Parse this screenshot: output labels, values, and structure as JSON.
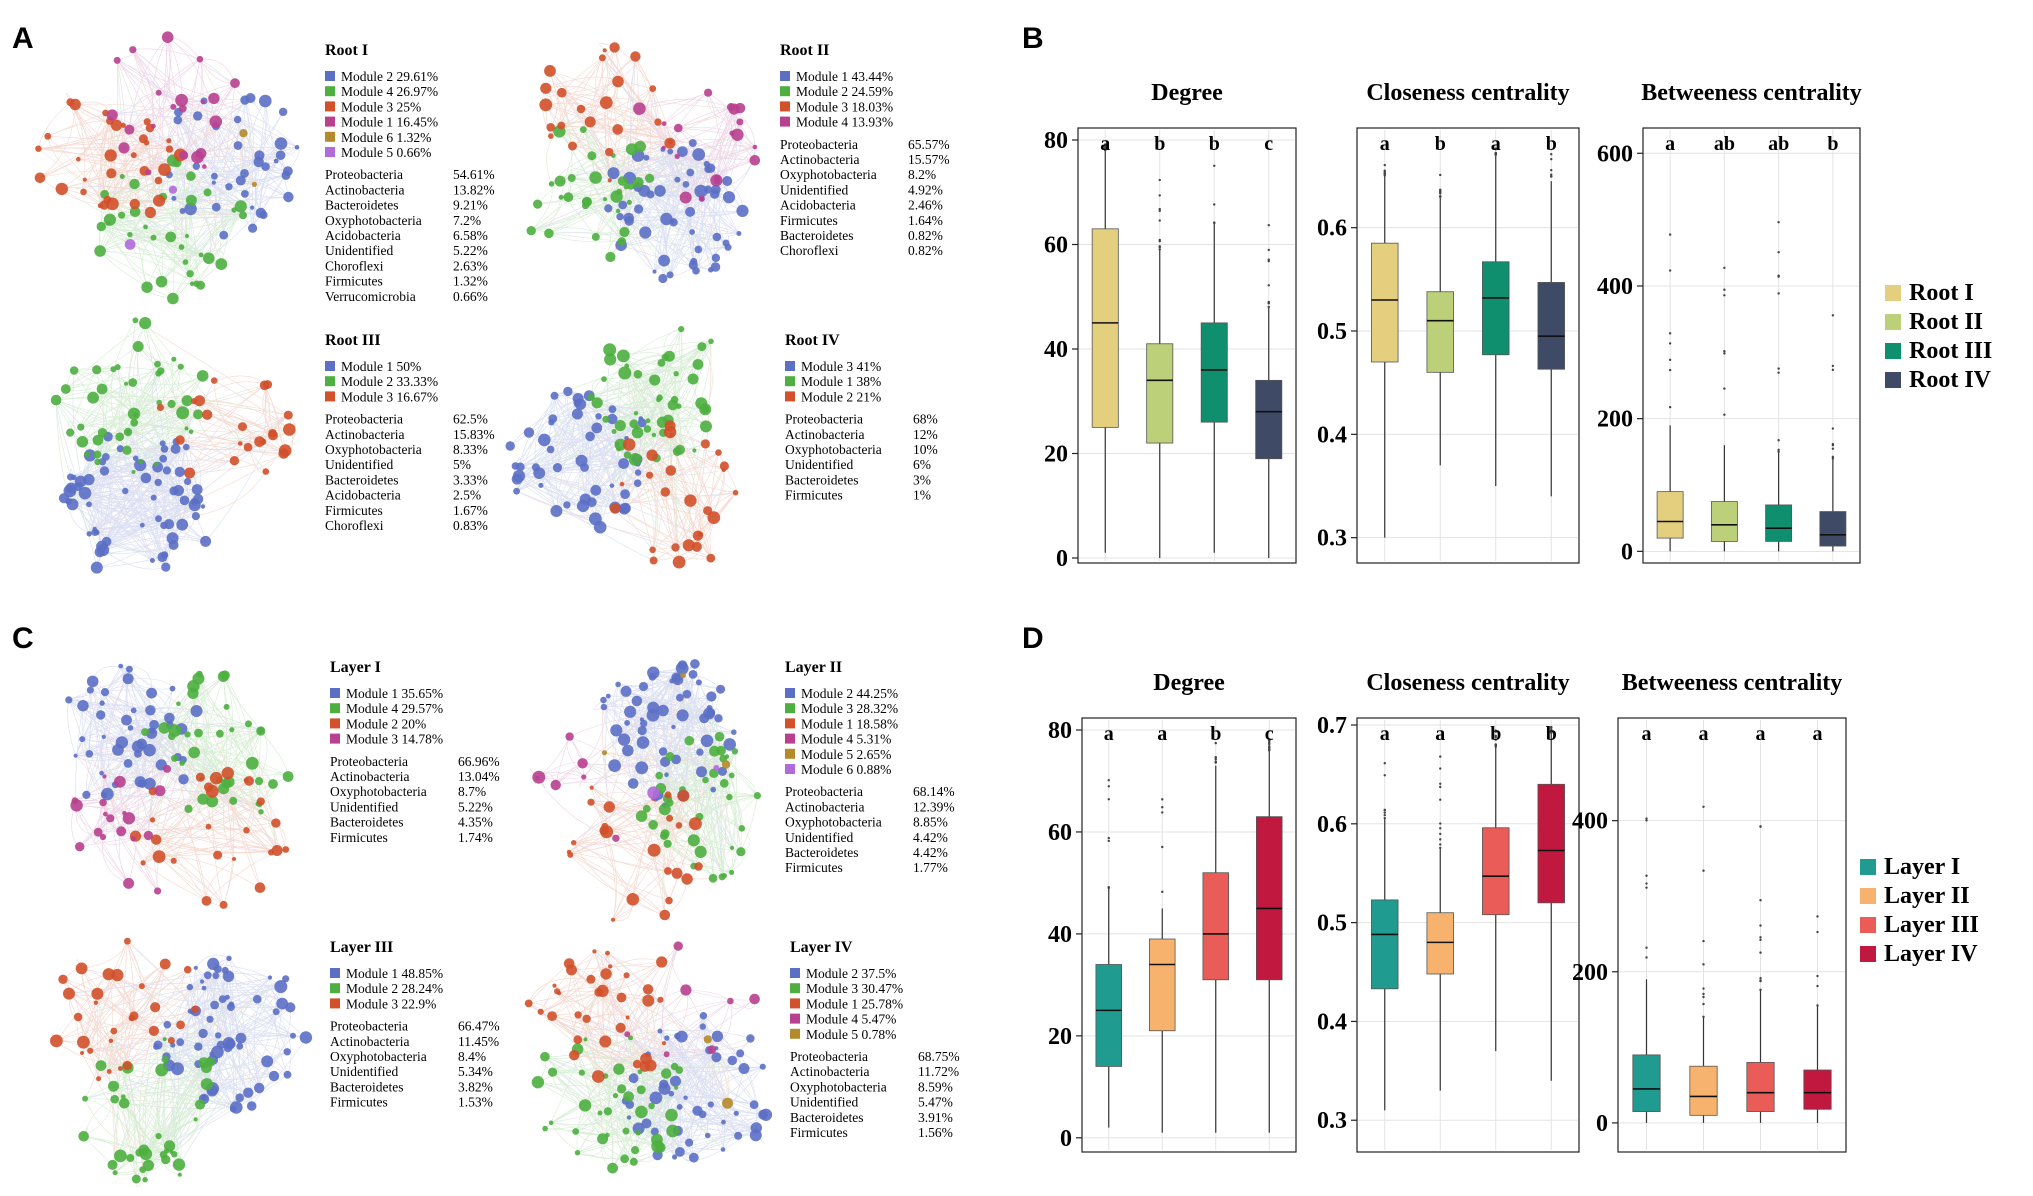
{
  "panels": {
    "A": {
      "letter": "A",
      "networks": [
        {
          "title": "Root I",
          "modules": [
            {
              "label": "Module 2",
              "value": "29.61%",
              "color": "#5b6fc5"
            },
            {
              "label": "Module 4",
              "value": "26.97%",
              "color": "#4caf3f"
            },
            {
              "label": "Module 3",
              "value": "25%",
              "color": "#d2502a"
            },
            {
              "label": "Module 1",
              "value": "16.45%",
              "color": "#b8408f"
            },
            {
              "label": "Module 6",
              "value": "1.32%",
              "color": "#b58a2a"
            },
            {
              "label": "Module 5",
              "value": "0.66%",
              "color": "#b06ad9"
            }
          ],
          "phyla": [
            {
              "name": "Proteobacteria",
              "value": "54.61%"
            },
            {
              "name": "Actinobacteria",
              "value": "13.82%"
            },
            {
              "name": "Bacteroidetes",
              "value": "9.21%"
            },
            {
              "name": "Oxyphotobacteria",
              "value": "7.2%"
            },
            {
              "name": "Acidobacteria",
              "value": "6.58%"
            },
            {
              "name": "Unidentified",
              "value": "5.22%"
            },
            {
              "name": "Choroflexi",
              "value": "2.63%"
            },
            {
              "name": "Firmicutes",
              "value": "1.32%"
            },
            {
              "name": "Verrucomicrobia",
              "value": "0.66%"
            }
          ]
        },
        {
          "title": "Root II",
          "modules": [
            {
              "label": "Module 1",
              "value": "43.44%",
              "color": "#5b6fc5"
            },
            {
              "label": "Module 2",
              "value": "24.59%",
              "color": "#4caf3f"
            },
            {
              "label": "Module 3",
              "value": "18.03%",
              "color": "#d2502a"
            },
            {
              "label": "Module 4",
              "value": "13.93%",
              "color": "#b8408f"
            }
          ],
          "phyla": [
            {
              "name": "Proteobacteria",
              "value": "65.57%"
            },
            {
              "name": "Actinobacteria",
              "value": "15.57%"
            },
            {
              "name": "Oxyphotobacteria",
              "value": "8.2%"
            },
            {
              "name": "Unidentified",
              "value": "4.92%"
            },
            {
              "name": "Acidobacteria",
              "value": "2.46%"
            },
            {
              "name": "Firmicutes",
              "value": "1.64%"
            },
            {
              "name": "Bacteroidetes",
              "value": "0.82%"
            },
            {
              "name": "Choroflexi",
              "value": "0.82%"
            }
          ]
        },
        {
          "title": "Root III",
          "modules": [
            {
              "label": "Module 1",
              "value": "50%",
              "color": "#5b6fc5"
            },
            {
              "label": "Module 2",
              "value": "33.33%",
              "color": "#4caf3f"
            },
            {
              "label": "Module 3",
              "value": "16.67%",
              "color": "#d2502a"
            }
          ],
          "phyla": [
            {
              "name": "Proteobacteria",
              "value": "62.5%"
            },
            {
              "name": "Actinobacteria",
              "value": "15.83%"
            },
            {
              "name": "Oxyphotobacteria",
              "value": "8.33%"
            },
            {
              "name": "Unidentified",
              "value": "5%"
            },
            {
              "name": "Bacteroidetes",
              "value": "3.33%"
            },
            {
              "name": "Acidobacteria",
              "value": "2.5%"
            },
            {
              "name": "Firmicutes",
              "value": "1.67%"
            },
            {
              "name": "Choroflexi",
              "value": "0.83%"
            }
          ]
        },
        {
          "title": "Root IV",
          "modules": [
            {
              "label": "Module 3",
              "value": "41%",
              "color": "#5b6fc5"
            },
            {
              "label": "Module 1",
              "value": "38%",
              "color": "#4caf3f"
            },
            {
              "label": "Module 2",
              "value": "21%",
              "color": "#d2502a"
            }
          ],
          "phyla": [
            {
              "name": "Proteobacteria",
              "value": "68%"
            },
            {
              "name": "Actinobacteria",
              "value": "12%"
            },
            {
              "name": "Oxyphotobacteria",
              "value": "10%"
            },
            {
              "name": "Unidentified",
              "value": "6%"
            },
            {
              "name": "Bacteroidetes",
              "value": "3%"
            },
            {
              "name": "Firmicutes",
              "value": "1%"
            }
          ]
        }
      ]
    },
    "C": {
      "letter": "C",
      "networks": [
        {
          "title": "Layer I",
          "modules": [
            {
              "label": "Module 1",
              "value": "35.65%",
              "color": "#5b6fc5"
            },
            {
              "label": "Module 4",
              "value": "29.57%",
              "color": "#4caf3f"
            },
            {
              "label": "Module 2",
              "value": "20%",
              "color": "#d2502a"
            },
            {
              "label": "Module 3",
              "value": "14.78%",
              "color": "#b8408f"
            }
          ],
          "phyla": [
            {
              "name": "Proteobacteria",
              "value": "66.96%"
            },
            {
              "name": "Actinobacteria",
              "value": "13.04%"
            },
            {
              "name": "Oxyphotobacteria",
              "value": "8.7%"
            },
            {
              "name": "Unidentified",
              "value": "5.22%"
            },
            {
              "name": "Bacteroidetes",
              "value": "4.35%"
            },
            {
              "name": "Firmicutes",
              "value": "1.74%"
            }
          ]
        },
        {
          "title": "Layer II",
          "modules": [
            {
              "label": "Module 2",
              "value": "44.25%",
              "color": "#5b6fc5"
            },
            {
              "label": "Module 3",
              "value": "28.32%",
              "color": "#4caf3f"
            },
            {
              "label": "Module 1",
              "value": "18.58%",
              "color": "#d2502a"
            },
            {
              "label": "Module 4",
              "value": "5.31%",
              "color": "#b8408f"
            },
            {
              "label": "Module 5",
              "value": "2.65%",
              "color": "#b58a2a"
            },
            {
              "label": "Module 6",
              "value": "0.88%",
              "color": "#b06ad9"
            }
          ],
          "phyla": [
            {
              "name": "Proteobacteria",
              "value": "68.14%"
            },
            {
              "name": "Actinobacteria",
              "value": "12.39%"
            },
            {
              "name": "Oxyphotobacteria",
              "value": "8.85%"
            },
            {
              "name": "Unidentified",
              "value": "4.42%"
            },
            {
              "name": "Bacteroidetes",
              "value": "4.42%"
            },
            {
              "name": "Firmicutes",
              "value": "1.77%"
            }
          ]
        },
        {
          "title": "Layer III",
          "modules": [
            {
              "label": "Module 1",
              "value": "48.85%",
              "color": "#5b6fc5"
            },
            {
              "label": "Module 2",
              "value": "28.24%",
              "color": "#4caf3f"
            },
            {
              "label": "Module 3",
              "value": "22.9%",
              "color": "#d2502a"
            }
          ],
          "phyla": [
            {
              "name": "Proteobacteria",
              "value": "66.47%"
            },
            {
              "name": "Actinobacteria",
              "value": "11.45%"
            },
            {
              "name": "Oxyphotobacteria",
              "value": "8.4%"
            },
            {
              "name": "Unidentified",
              "value": "5.34%"
            },
            {
              "name": "Bacteroidetes",
              "value": "3.82%"
            },
            {
              "name": "Firmicutes",
              "value": "1.53%"
            }
          ]
        },
        {
          "title": "Layer IV",
          "modules": [
            {
              "label": "Module 2",
              "value": "37.5%",
              "color": "#5b6fc5"
            },
            {
              "label": "Module 3",
              "value": "30.47%",
              "color": "#4caf3f"
            },
            {
              "label": "Module 1",
              "value": "25.78%",
              "color": "#d2502a"
            },
            {
              "label": "Module 4",
              "value": "5.47%",
              "color": "#b8408f"
            },
            {
              "label": "Module 5",
              "value": "0.78%",
              "color": "#b58a2a"
            }
          ],
          "phyla": [
            {
              "name": "Proteobacteria",
              "value": "68.75%"
            },
            {
              "name": "Actinobacteria",
              "value": "11.72%"
            },
            {
              "name": "Oxyphotobacteria",
              "value": "8.59%"
            },
            {
              "name": "Unidentified",
              "value": "5.47%"
            },
            {
              "name": "Bacteroidetes",
              "value": "3.91%"
            },
            {
              "name": "Firmicutes",
              "value": "1.56%"
            }
          ]
        }
      ]
    },
    "B": {
      "letter": "B"
    },
    "D": {
      "letter": "D"
    }
  },
  "chart_data": [
    {
      "type": "box",
      "panel": "B",
      "title": "Degree",
      "ylim": [
        0,
        80
      ],
      "yticks": [
        0,
        20,
        40,
        60,
        80
      ],
      "groups": [
        "Root I",
        "Root II",
        "Root III",
        "Root IV"
      ],
      "colors": [
        "#e3cf7e",
        "#bcd07a",
        "#0f8f6d",
        "#3f4a66"
      ],
      "letters": [
        "a",
        "b",
        "b",
        "c"
      ],
      "boxes": [
        {
          "min": 1,
          "q1": 25,
          "median": 45,
          "q3": 63,
          "max": 78
        },
        {
          "min": 0,
          "q1": 22,
          "median": 34,
          "q3": 41,
          "max": 59
        },
        {
          "min": 1,
          "q1": 26,
          "median": 36,
          "q3": 45,
          "max": 64
        },
        {
          "min": 0,
          "q1": 19,
          "median": 28,
          "q3": 34,
          "max": 48
        }
      ]
    },
    {
      "type": "box",
      "panel": "B",
      "title": "Closeness centrality",
      "ylim": [
        0.29,
        0.68
      ],
      "yticks": [
        0.3,
        0.4,
        0.5,
        0.6
      ],
      "groups": [
        "Root I",
        "Root II",
        "Root III",
        "Root IV"
      ],
      "colors": [
        "#e3cf7e",
        "#bcd07a",
        "#0f8f6d",
        "#3f4a66"
      ],
      "letters": [
        "a",
        "b",
        "a",
        "b"
      ],
      "boxes": [
        {
          "min": 0.3,
          "q1": 0.47,
          "median": 0.53,
          "q3": 0.585,
          "max": 0.65
        },
        {
          "min": 0.37,
          "q1": 0.46,
          "median": 0.51,
          "q3": 0.538,
          "max": 0.63
        },
        {
          "min": 0.35,
          "q1": 0.477,
          "median": 0.532,
          "q3": 0.567,
          "max": 0.67
        },
        {
          "min": 0.34,
          "q1": 0.463,
          "median": 0.495,
          "q3": 0.547,
          "max": 0.645
        }
      ]
    },
    {
      "type": "box",
      "panel": "B",
      "title": "Betweeness centrality",
      "ylim": [
        -10,
        620
      ],
      "yticks": [
        0,
        200,
        400,
        600
      ],
      "groups": [
        "Root I",
        "Root II",
        "Root III",
        "Root IV"
      ],
      "colors": [
        "#e3cf7e",
        "#bcd07a",
        "#0f8f6d",
        "#3f4a66"
      ],
      "letters": [
        "a",
        "ab",
        "ab",
        "b"
      ],
      "boxes": [
        {
          "min": 0,
          "q1": 20,
          "median": 45,
          "q3": 90,
          "max": 190
        },
        {
          "min": 0,
          "q1": 15,
          "median": 40,
          "q3": 75,
          "max": 160
        },
        {
          "min": 0,
          "q1": 15,
          "median": 35,
          "q3": 70,
          "max": 150
        },
        {
          "min": 0,
          "q1": 8,
          "median": 25,
          "q3": 60,
          "max": 140
        }
      ]
    },
    {
      "type": "box",
      "panel": "D",
      "title": "Degree",
      "ylim": [
        -2,
        80
      ],
      "yticks": [
        0,
        20,
        40,
        60,
        80
      ],
      "groups": [
        "Layer I",
        "Layer II",
        "Layer III",
        "Layer IV"
      ],
      "colors": [
        "#1f9c8f",
        "#f7b26e",
        "#ea5c57",
        "#c0183f"
      ],
      "letters": [
        "a",
        "a",
        "b",
        "c"
      ],
      "boxes": [
        {
          "min": 2,
          "q1": 14,
          "median": 25,
          "q3": 34,
          "max": 49
        },
        {
          "min": 1,
          "q1": 21,
          "median": 34,
          "q3": 39,
          "max": 45
        },
        {
          "min": 1,
          "q1": 31,
          "median": 40,
          "q3": 52,
          "max": 73
        },
        {
          "min": 1,
          "q1": 31,
          "median": 45,
          "q3": 63,
          "max": 76
        }
      ]
    },
    {
      "type": "box",
      "panel": "D",
      "title": "Closeness centrality",
      "ylim": [
        0.28,
        0.7
      ],
      "yticks": [
        0.3,
        0.4,
        0.5,
        0.6,
        0.7
      ],
      "groups": [
        "Layer I",
        "Layer II",
        "Layer III",
        "Layer IV"
      ],
      "colors": [
        "#1f9c8f",
        "#f7b26e",
        "#ea5c57",
        "#c0183f"
      ],
      "letters": [
        "a",
        "a",
        "b",
        "b"
      ],
      "boxes": [
        {
          "min": 0.31,
          "q1": 0.433,
          "median": 0.488,
          "q3": 0.523,
          "max": 0.605
        },
        {
          "min": 0.33,
          "q1": 0.448,
          "median": 0.48,
          "q3": 0.51,
          "max": 0.575
        },
        {
          "min": 0.37,
          "q1": 0.508,
          "median": 0.547,
          "q3": 0.596,
          "max": 0.678
        },
        {
          "min": 0.34,
          "q1": 0.52,
          "median": 0.573,
          "q3": 0.64,
          "max": 0.692
        }
      ]
    },
    {
      "type": "box",
      "panel": "D",
      "title": "Betweeness centrality",
      "ylim": [
        -20,
        520
      ],
      "yticks": [
        0,
        200,
        400
      ],
      "groups": [
        "Layer I",
        "Layer II",
        "Layer III",
        "Layer IV"
      ],
      "colors": [
        "#1f9c8f",
        "#f7b26e",
        "#ea5c57",
        "#c0183f"
      ],
      "letters": [
        "a",
        "a",
        "a",
        "a"
      ],
      "boxes": [
        {
          "min": 0,
          "q1": 15,
          "median": 45,
          "q3": 90,
          "max": 190
        },
        {
          "min": 0,
          "q1": 10,
          "median": 35,
          "q3": 75,
          "max": 140
        },
        {
          "min": 0,
          "q1": 15,
          "median": 40,
          "q3": 80,
          "max": 175
        },
        {
          "min": 0,
          "q1": 18,
          "median": 40,
          "q3": 70,
          "max": 155
        }
      ]
    }
  ],
  "legends": {
    "B": [
      {
        "label": "Root I",
        "color": "#e3cf7e"
      },
      {
        "label": "Root II",
        "color": "#bcd07a"
      },
      {
        "label": "Root III",
        "color": "#0f8f6d"
      },
      {
        "label": "Root IV",
        "color": "#3f4a66"
      }
    ],
    "D": [
      {
        "label": "Layer I",
        "color": "#1f9c8f"
      },
      {
        "label": "Layer II",
        "color": "#f7b26e"
      },
      {
        "label": "Layer III",
        "color": "#ea5c57"
      },
      {
        "label": "Layer IV",
        "color": "#c0183f"
      }
    ]
  }
}
